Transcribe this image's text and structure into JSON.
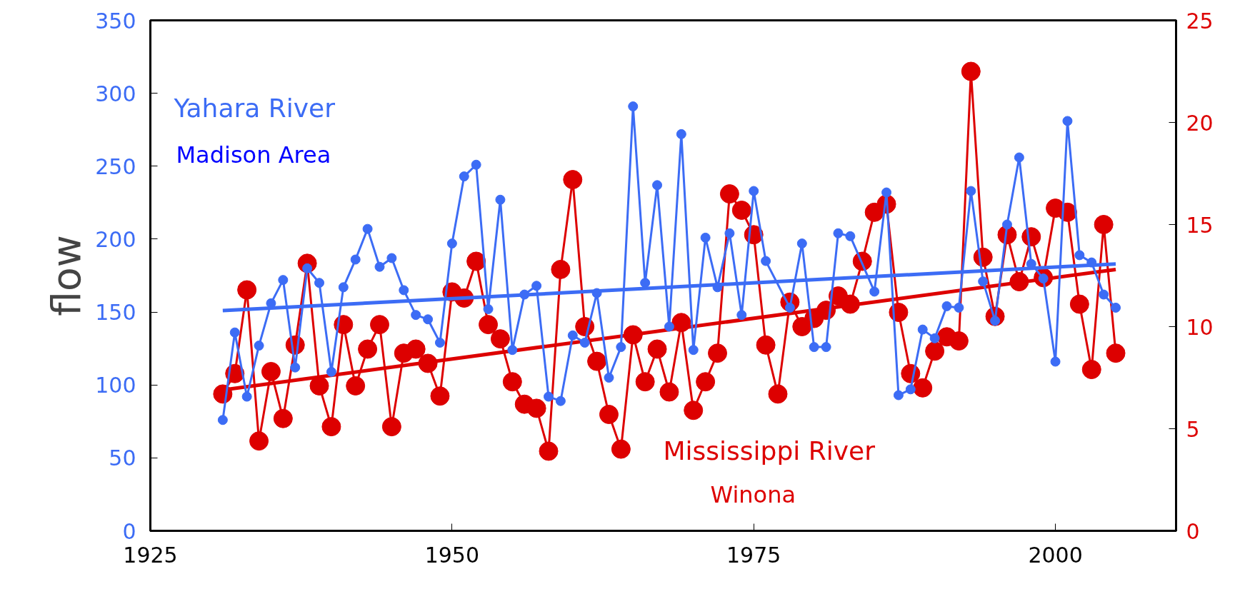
{
  "chart_data": {
    "type": "line",
    "ylabel": "flow",
    "xlim": [
      1925,
      2010
    ],
    "xticks": [
      1925,
      1950,
      1975,
      2000
    ],
    "ylim": [
      0,
      350
    ],
    "yticks": [
      0,
      50,
      100,
      150,
      200,
      250,
      300,
      350
    ],
    "y2lim": [
      0,
      25
    ],
    "y2ticks": [
      0,
      5,
      10,
      15,
      20,
      25
    ],
    "grid": false,
    "legend": false,
    "marker": "circle",
    "line_style": "solid",
    "annotations": [
      "Madison Area",
      "Winona"
    ],
    "series": [
      {
        "name": "Yahara River",
        "color": "#3c6cf5",
        "x": [
          1931,
          1932,
          1933,
          1934,
          1935,
          1936,
          1937,
          1938,
          1939,
          1940,
          1941,
          1942,
          1943,
          1944,
          1945,
          1946,
          1947,
          1948,
          1949,
          1950,
          1951,
          1952,
          1953,
          1954,
          1955,
          1956,
          1957,
          1958,
          1959,
          1960,
          1961,
          1962,
          1963,
          1964,
          1965,
          1966,
          1967,
          1968,
          1969,
          1970,
          1971,
          1972,
          1973,
          1974,
          1975,
          1976,
          1978,
          1979,
          1980,
          1981,
          1982,
          1983,
          1985,
          1986,
          1987,
          1988,
          1989,
          1990,
          1991,
          1992,
          1993,
          1994,
          1995,
          1996,
          1997,
          1998,
          1999,
          2000,
          2001,
          2002,
          2003,
          2004,
          2005
        ],
        "values": [
          76,
          136,
          92,
          127,
          156,
          172,
          112,
          180,
          170,
          109,
          167,
          186,
          207,
          181,
          187,
          165,
          148,
          145,
          129,
          197,
          243,
          251,
          152,
          227,
          124,
          162,
          168,
          92,
          89,
          134,
          129,
          163,
          105,
          126,
          291,
          170,
          237,
          140,
          272,
          124,
          201,
          167,
          204,
          148,
          233,
          185,
          153,
          197,
          126,
          126,
          204,
          202,
          164,
          232,
          93,
          97,
          138,
          132,
          154,
          153,
          233,
          171,
          144,
          210,
          256,
          183,
          173,
          116,
          281,
          189,
          184,
          162,
          153
        ]
      },
      {
        "name": "Mississippi River",
        "color": "#dd0000",
        "axis": "y2",
        "x": [
          1931,
          1932,
          1933,
          1934,
          1935,
          1936,
          1937,
          1938,
          1939,
          1940,
          1941,
          1942,
          1943,
          1944,
          1945,
          1946,
          1947,
          1948,
          1949,
          1950,
          1951,
          1952,
          1953,
          1954,
          1955,
          1956,
          1957,
          1958,
          1959,
          1960,
          1961,
          1962,
          1963,
          1964,
          1965,
          1966,
          1967,
          1968,
          1969,
          1970,
          1971,
          1972,
          1973,
          1974,
          1975,
          1976,
          1977,
          1978,
          1979,
          1980,
          1981,
          1982,
          1983,
          1984,
          1985,
          1986,
          1987,
          1988,
          1989,
          1990,
          1991,
          1992,
          1993,
          1994,
          1995,
          1996,
          1997,
          1998,
          1999,
          2000,
          2001,
          2002,
          2003,
          2004,
          2005
        ],
        "values": [
          6.7,
          7.7,
          11.8,
          4.4,
          7.8,
          5.5,
          9.1,
          13.1,
          7.1,
          5.1,
          10.1,
          7.1,
          8.9,
          10.1,
          5.1,
          8.7,
          8.9,
          8.2,
          6.6,
          11.7,
          11.4,
          13.2,
          10.1,
          9.4,
          7.3,
          6.2,
          6.0,
          3.9,
          12.8,
          17.2,
          10.0,
          8.3,
          5.7,
          4.0,
          9.6,
          7.3,
          8.9,
          6.8,
          10.2,
          5.9,
          7.3,
          8.7,
          16.5,
          15.7,
          14.5,
          9.1,
          6.7,
          11.2,
          10.0,
          10.4,
          10.8,
          11.5,
          11.1,
          13.2,
          15.6,
          16.0,
          10.7,
          7.7,
          7.0,
          8.8,
          9.5,
          9.3,
          22.5,
          13.4,
          10.5,
          14.5,
          12.2,
          14.4,
          12.4,
          15.8,
          15.6,
          11.1,
          7.9,
          15.0,
          8.7
        ]
      },
      {
        "color": "#3c6cf5",
        "type": "line",
        "marker": "none",
        "x": [
          1931,
          2005
        ],
        "values": [
          151,
          183
        ]
      },
      {
        "color": "#dd0000",
        "type": "line",
        "marker": "none",
        "axis": "y2",
        "x": [
          1931,
          2005
        ],
        "values": [
          6.9,
          12.8
        ]
      }
    ]
  }
}
